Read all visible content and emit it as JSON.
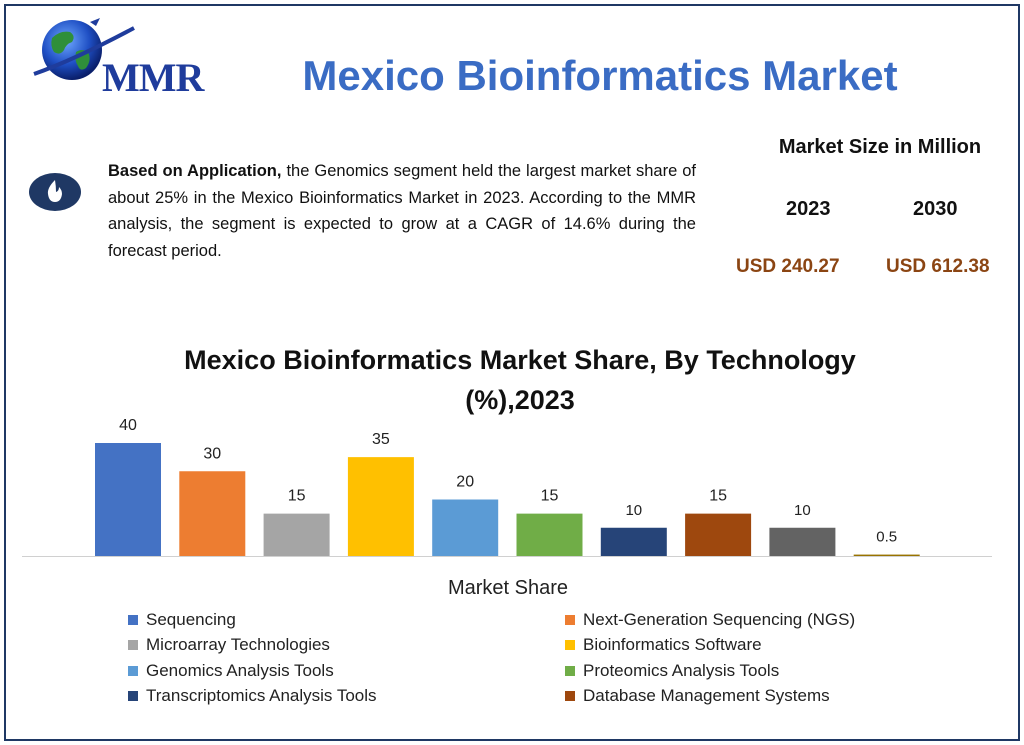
{
  "header": {
    "logo_text": "MMR",
    "title": "Mexico Bioinformatics Market"
  },
  "summary": {
    "bold_lead": "Based on Application,",
    "text": " the Genomics segment held the largest market share of about 25% in the Mexico Bioinformatics Market in 2023. According to the MMR analysis, the segment is expected to grow at a CAGR of 14.6% during the forecast period.",
    "icon": "flame-icon"
  },
  "market_size": {
    "title": "Market Size in Million",
    "year1": "2023",
    "year2": "2030",
    "value1": "USD 240.27",
    "value2": "USD 612.38"
  },
  "colors": {
    "title_blue": "#3a6cc4",
    "value_brown": "#8b4513",
    "frame": "#1f3864"
  },
  "chart_data": {
    "type": "bar",
    "title": "Mexico Bioinformatics Market Share, By Technology (%),2023",
    "xlabel": "Market Share",
    "ylabel": "",
    "ylim": [
      0,
      40
    ],
    "grid": false,
    "legend_position": "bottom",
    "categories": [
      "Sequencing",
      "Next-Generation Sequencing (NGS)",
      "Microarray Technologies",
      "Bioinformatics Software",
      "Genomics Analysis Tools",
      "Proteomics Analysis Tools",
      "Transcriptomics Analysis Tools",
      "Database Management Systems",
      "",
      ""
    ],
    "values": [
      40,
      30,
      15,
      35,
      20,
      15,
      10,
      15,
      10,
      0.5
    ],
    "labels": [
      "40",
      "30",
      "15",
      "35",
      "20",
      "15",
      "10",
      "15",
      "10",
      "0.5"
    ],
    "colors": [
      "#4472c4",
      "#ed7d31",
      "#a5a5a5",
      "#ffc000",
      "#5b9bd5",
      "#70ad47",
      "#264478",
      "#9e480e",
      "#636363",
      "#997300"
    ]
  }
}
